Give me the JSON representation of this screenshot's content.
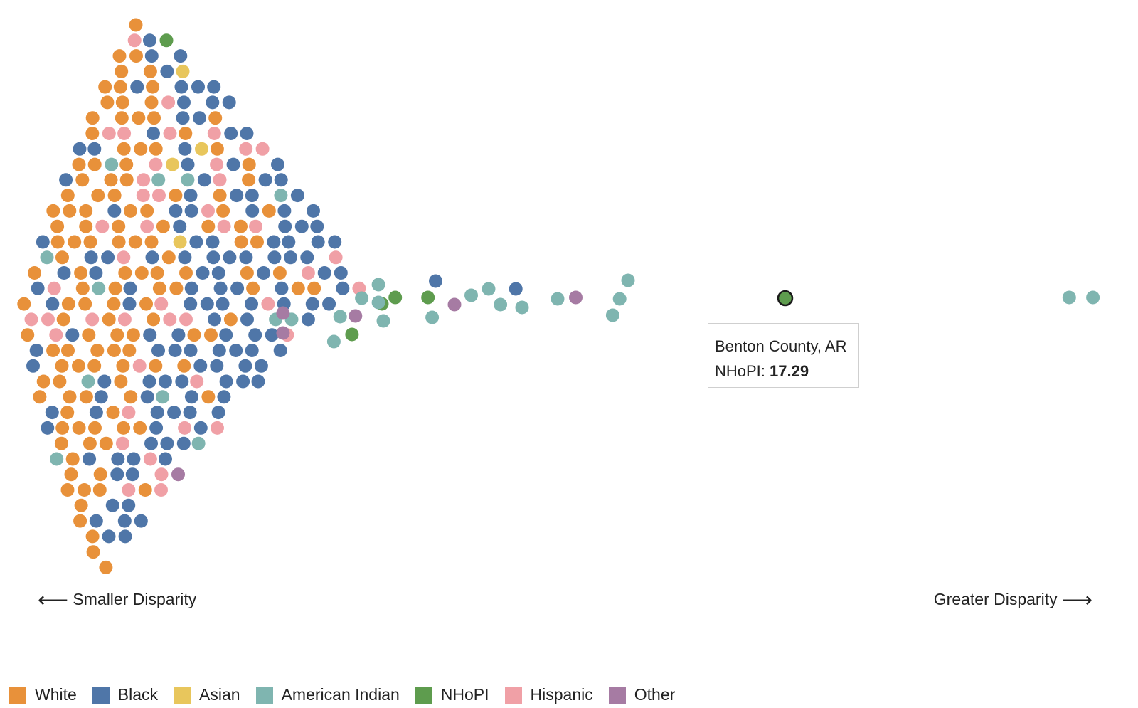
{
  "chart_data": {
    "type": "scatter",
    "title": "",
    "xlabel": "",
    "ylabel": "",
    "x_direction_labels": {
      "left": "Smaller Disparity",
      "right": "Greater Disparity",
      "left_arrow": "⟵",
      "right_arrow": "⟶"
    },
    "series": [
      {
        "name": "White",
        "color": "#e8913a",
        "count": 175
      },
      {
        "name": "Black",
        "color": "#4f76a8",
        "count": 230
      },
      {
        "name": "Asian",
        "color": "#e8c65c",
        "count": 3
      },
      {
        "name": "American Indian",
        "color": "#7fb5b0",
        "count": 28
      },
      {
        "name": "NHoPI",
        "color": "#5e9c4e",
        "count": 11
      },
      {
        "name": "Hispanic",
        "color": "#f0a0a6",
        "count": 45
      },
      {
        "name": "Other",
        "color": "#a67ba3",
        "count": 7
      }
    ],
    "highlighted_point": {
      "county": "Benton County, AR",
      "group": "NHoPI",
      "value": 17.29
    },
    "legend_position": "bottom-left",
    "grid": false
  },
  "tooltip": {
    "county": "Benton County, AR",
    "metric_label": "NHoPI:",
    "metric_value": "17.29"
  }
}
